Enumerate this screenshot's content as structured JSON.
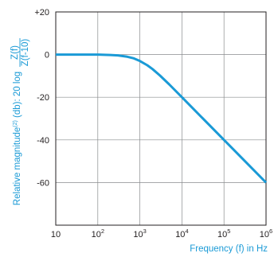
{
  "chart_data": {
    "type": "line",
    "xscale": "log",
    "xlim": [
      10,
      1000000
    ],
    "ylim": [
      -80,
      20
    ],
    "x_tick_labels": [
      {
        "base": "10",
        "exp": ""
      },
      {
        "base": "10",
        "exp": "2"
      },
      {
        "base": "10",
        "exp": "3"
      },
      {
        "base": "10",
        "exp": "4"
      },
      {
        "base": "10",
        "exp": "5"
      },
      {
        "base": "10",
        "exp": "6"
      }
    ],
    "y_tick_labels": [
      "+20",
      "0",
      "-20",
      "-40",
      "-60"
    ],
    "xlabel": "Frequency (f) in Hz",
    "ylabel_prefix": "Relative magnitude",
    "ylabel_superscript": "(2)",
    "ylabel_middle": " (db): 20 log",
    "ylabel_numerator": "Z(f)",
    "ylabel_denominator": "Z(f-10)",
    "grid": true,
    "line_color": "#1a9ad6",
    "series": [
      {
        "x": [
          10,
          20,
          50,
          100,
          200,
          300,
          500,
          700,
          1000,
          1500,
          2000,
          3000,
          5000,
          10000,
          100000,
          1000000
        ],
        "y": [
          0,
          0,
          0,
          0,
          -0.2,
          -0.4,
          -1.0,
          -1.7,
          -3.0,
          -5.0,
          -6.8,
          -9.8,
          -14.0,
          -20.0,
          -40.0,
          -60.0
        ]
      }
    ]
  }
}
